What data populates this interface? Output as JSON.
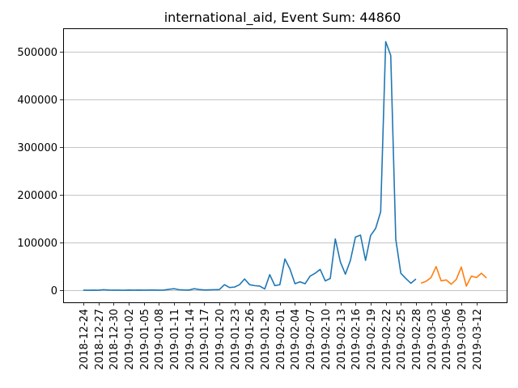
{
  "chart_data": {
    "type": "line",
    "title": "international_aid, Event Sum: 44860",
    "xlabel": "",
    "ylabel": "",
    "ylim": [
      -25000,
      550000
    ],
    "grid": "horizontal",
    "x_ticks": [
      "2018-12-24",
      "2018-12-27",
      "2018-12-30",
      "2019-01-02",
      "2019-01-05",
      "2019-01-08",
      "2019-01-11",
      "2019-01-14",
      "2019-01-17",
      "2019-01-20",
      "2019-01-23",
      "2019-01-26",
      "2019-01-29",
      "2019-02-01",
      "2019-02-04",
      "2019-02-07",
      "2019-02-10",
      "2019-02-13",
      "2019-02-16",
      "2019-02-19",
      "2019-02-22",
      "2019-02-25",
      "2019-02-28",
      "2019-03-03",
      "2019-03-06",
      "2019-03-09",
      "2019-03-12"
    ],
    "y_ticks": [
      0,
      100000,
      200000,
      300000,
      400000,
      500000
    ],
    "series": [
      {
        "color": "#1f77b4",
        "x": [
          "2018-12-24",
          "2018-12-25",
          "2018-12-26",
          "2018-12-27",
          "2018-12-28",
          "2018-12-29",
          "2018-12-30",
          "2018-12-31",
          "2019-01-01",
          "2019-01-02",
          "2019-01-03",
          "2019-01-04",
          "2019-01-05",
          "2019-01-06",
          "2019-01-07",
          "2019-01-08",
          "2019-01-09",
          "2019-01-10",
          "2019-01-11",
          "2019-01-12",
          "2019-01-13",
          "2019-01-14",
          "2019-01-15",
          "2019-01-16",
          "2019-01-17",
          "2019-01-18",
          "2019-01-19",
          "2019-01-20",
          "2019-01-21",
          "2019-01-22",
          "2019-01-23",
          "2019-01-24",
          "2019-01-25",
          "2019-01-26",
          "2019-01-27",
          "2019-01-28",
          "2019-01-29",
          "2019-01-30",
          "2019-01-31",
          "2019-02-01",
          "2019-02-02",
          "2019-02-03",
          "2019-02-04",
          "2019-02-05",
          "2019-02-06",
          "2019-02-07",
          "2019-02-08",
          "2019-02-09",
          "2019-02-10",
          "2019-02-11",
          "2019-02-12",
          "2019-02-13",
          "2019-02-14",
          "2019-02-15",
          "2019-02-16",
          "2019-02-17",
          "2019-02-18",
          "2019-02-19",
          "2019-02-20",
          "2019-02-21",
          "2019-02-22",
          "2019-02-23",
          "2019-02-24",
          "2019-02-25",
          "2019-02-26",
          "2019-02-27",
          "2019-02-28"
        ],
        "y": [
          500,
          300,
          600,
          400,
          1500,
          800,
          500,
          600,
          400,
          800,
          500,
          700,
          600,
          800,
          700,
          600,
          700,
          2200,
          3500,
          1500,
          1000,
          800,
          3500,
          1800,
          1000,
          1200,
          1500,
          1800,
          12000,
          6000,
          7000,
          12000,
          24000,
          12000,
          10000,
          9000,
          3000,
          33000,
          10000,
          12000,
          66000,
          45000,
          14000,
          18000,
          14000,
          30000,
          36000,
          44000,
          20000,
          25000,
          108000,
          60000,
          34000,
          63000,
          112000,
          116000,
          63000,
          115000,
          130000,
          165000,
          522000,
          493000,
          107000,
          36000,
          25000,
          15000,
          24000
        ]
      },
      {
        "color": "#ff7f0e",
        "x": [
          "2019-03-01",
          "2019-03-02",
          "2019-03-03",
          "2019-03-04",
          "2019-03-05",
          "2019-03-06",
          "2019-03-07",
          "2019-03-08",
          "2019-03-09",
          "2019-03-10",
          "2019-03-11",
          "2019-03-12",
          "2019-03-13",
          "2019-03-14"
        ],
        "y": [
          15000,
          19000,
          27000,
          50000,
          20000,
          22000,
          13000,
          23000,
          49000,
          9000,
          30000,
          27000,
          36000,
          26000
        ]
      }
    ]
  }
}
